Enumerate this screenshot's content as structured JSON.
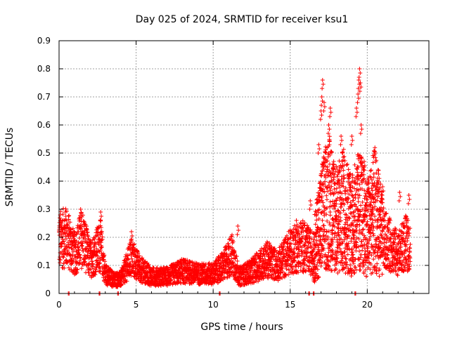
{
  "chart_data": {
    "type": "scatter",
    "title": "Day 025 of 2024, SRMTID for receiver ksu1",
    "xlabel": "GPS time / hours",
    "ylabel": "SRMTID / TECUs",
    "xlim": [
      0,
      24
    ],
    "ylim": [
      0,
      0.9
    ],
    "xticks": [
      "0",
      "5",
      "10",
      "15",
      "20"
    ],
    "yticks": [
      "0",
      "0.1",
      "0.2",
      "0.3",
      "0.4",
      "0.5",
      "0.6",
      "0.7",
      "0.8",
      "0.9"
    ],
    "grid": true,
    "marker": "+",
    "series": [
      {
        "name": "SRMTID",
        "color": "#ff0000",
        "trend": [
          {
            "x": 0.0,
            "y": 0.19
          },
          {
            "x": 0.5,
            "y": 0.2
          },
          {
            "x": 1.0,
            "y": 0.14
          },
          {
            "x": 1.5,
            "y": 0.2
          },
          {
            "x": 2.0,
            "y": 0.12
          },
          {
            "x": 2.7,
            "y": 0.17
          },
          {
            "x": 3.0,
            "y": 0.07
          },
          {
            "x": 3.5,
            "y": 0.05
          },
          {
            "x": 4.0,
            "y": 0.05
          },
          {
            "x": 4.7,
            "y": 0.13
          },
          {
            "x": 5.2,
            "y": 0.09
          },
          {
            "x": 6.0,
            "y": 0.06
          },
          {
            "x": 7.0,
            "y": 0.06
          },
          {
            "x": 8.0,
            "y": 0.08
          },
          {
            "x": 9.0,
            "y": 0.07
          },
          {
            "x": 10.0,
            "y": 0.07
          },
          {
            "x": 10.7,
            "y": 0.1
          },
          {
            "x": 11.2,
            "y": 0.14
          },
          {
            "x": 11.7,
            "y": 0.06
          },
          {
            "x": 12.5,
            "y": 0.08
          },
          {
            "x": 13.5,
            "y": 0.12
          },
          {
            "x": 14.2,
            "y": 0.1
          },
          {
            "x": 15.0,
            "y": 0.15
          },
          {
            "x": 15.8,
            "y": 0.17
          },
          {
            "x": 16.5,
            "y": 0.14
          },
          {
            "x": 17.0,
            "y": 0.26
          },
          {
            "x": 17.5,
            "y": 0.33
          },
          {
            "x": 18.0,
            "y": 0.26
          },
          {
            "x": 18.5,
            "y": 0.3
          },
          {
            "x": 19.0,
            "y": 0.24
          },
          {
            "x": 19.5,
            "y": 0.3
          },
          {
            "x": 20.0,
            "y": 0.23
          },
          {
            "x": 20.5,
            "y": 0.3
          },
          {
            "x": 21.0,
            "y": 0.2
          },
          {
            "x": 21.5,
            "y": 0.17
          },
          {
            "x": 22.0,
            "y": 0.14
          },
          {
            "x": 22.5,
            "y": 0.18
          },
          {
            "x": 22.8,
            "y": 0.16
          }
        ],
        "peaks": [
          {
            "x": 0.15,
            "y": 0.25
          },
          {
            "x": 0.4,
            "y": 0.29
          },
          {
            "x": 1.4,
            "y": 0.3
          },
          {
            "x": 2.7,
            "y": 0.29
          },
          {
            "x": 4.7,
            "y": 0.22
          },
          {
            "x": 11.6,
            "y": 0.24
          },
          {
            "x": 15.4,
            "y": 0.26
          },
          {
            "x": 16.3,
            "y": 0.33
          },
          {
            "x": 16.85,
            "y": 0.53
          },
          {
            "x": 17.0,
            "y": 0.65
          },
          {
            "x": 17.05,
            "y": 0.7
          },
          {
            "x": 17.1,
            "y": 0.76
          },
          {
            "x": 17.2,
            "y": 0.68
          },
          {
            "x": 17.5,
            "y": 0.6
          },
          {
            "x": 17.6,
            "y": 0.66
          },
          {
            "x": 17.75,
            "y": 0.46
          },
          {
            "x": 18.3,
            "y": 0.56
          },
          {
            "x": 18.4,
            "y": 0.5
          },
          {
            "x": 19.0,
            "y": 0.56
          },
          {
            "x": 19.3,
            "y": 0.66
          },
          {
            "x": 19.4,
            "y": 0.71
          },
          {
            "x": 19.45,
            "y": 0.76
          },
          {
            "x": 19.5,
            "y": 0.8
          },
          {
            "x": 19.55,
            "y": 0.75
          },
          {
            "x": 19.6,
            "y": 0.6
          },
          {
            "x": 19.8,
            "y": 0.47
          },
          {
            "x": 20.7,
            "y": 0.44
          },
          {
            "x": 21.0,
            "y": 0.38
          },
          {
            "x": 22.1,
            "y": 0.36
          },
          {
            "x": 22.7,
            "y": 0.35
          }
        ],
        "zero_points": [
          0.6,
          2.6,
          3.8,
          10.4,
          16.2,
          16.5,
          19.2
        ]
      }
    ]
  }
}
